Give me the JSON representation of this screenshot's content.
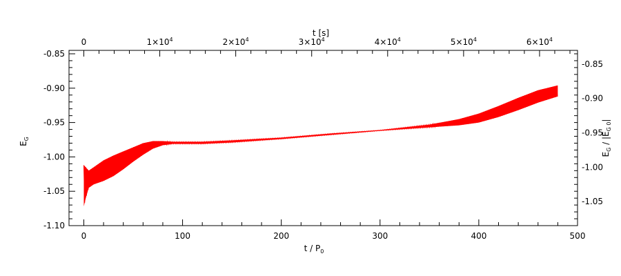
{
  "chart_data": {
    "type": "line",
    "xlabel": "t / P",
    "xlabel_sub": "0",
    "x2label": "t [s]",
    "ylabel": "E",
    "ylabel_sub": "G",
    "y2label_pre": "E",
    "y2label_pre_sub": "G",
    "y2label_mid": " / |E",
    "y2label_mid_sub": "G 0",
    "y2label_post": "|",
    "xlim": [
      -15,
      500
    ],
    "ylim": [
      -1.1,
      -0.845
    ],
    "x2lim": [
      -1950,
      65000
    ],
    "y2lim": [
      -1.085,
      -0.83
    ],
    "x_ticks": [
      "0",
      "100",
      "200",
      "300",
      "400",
      "500"
    ],
    "y_ticks": [
      "-0.85",
      "-0.90",
      "-0.95",
      "-1.00",
      "-1.05",
      "-1.10"
    ],
    "x2_ticks": [
      {
        "value": 0,
        "mantissa": "0",
        "exponent": ""
      },
      {
        "value": 10000,
        "mantissa": "1×10",
        "exponent": "4"
      },
      {
        "value": 20000,
        "mantissa": "2×10",
        "exponent": "4"
      },
      {
        "value": 30000,
        "mantissa": "3×10",
        "exponent": "4"
      },
      {
        "value": 40000,
        "mantissa": "4×10",
        "exponent": "4"
      },
      {
        "value": 50000,
        "mantissa": "5×10",
        "exponent": "4"
      },
      {
        "value": 60000,
        "mantissa": "6×10",
        "exponent": "4"
      }
    ],
    "y2_ticks": [
      "-0.85",
      "-0.90",
      "-0.95",
      "-1.00",
      "-1.05"
    ],
    "series": [
      {
        "color": "#ff0000",
        "upper": {
          "x": [
            0,
            2,
            5,
            10,
            20,
            30,
            40,
            50,
            60,
            70,
            80,
            90,
            100,
            120,
            150,
            200,
            250,
            300,
            350,
            380,
            400,
            420,
            440,
            460,
            480
          ],
          "y": [
            -1.012,
            -1.015,
            -1.02,
            -1.015,
            -1.005,
            -0.998,
            -0.992,
            -0.986,
            -0.98,
            -0.977,
            -0.977,
            -0.978,
            -0.978,
            -0.978,
            -0.976,
            -0.972,
            -0.966,
            -0.961,
            -0.953,
            -0.945,
            -0.937,
            -0.926,
            -0.914,
            -0.903,
            -0.896
          ]
        },
        "lower": {
          "x": [
            0,
            2,
            5,
            10,
            20,
            30,
            40,
            50,
            60,
            70,
            80,
            90,
            100,
            120,
            150,
            200,
            250,
            300,
            350,
            380,
            400,
            420,
            440,
            460,
            480
          ],
          "y": [
            -1.072,
            -1.06,
            -1.045,
            -1.04,
            -1.035,
            -1.028,
            -1.018,
            -1.007,
            -0.997,
            -0.988,
            -0.983,
            -0.981,
            -0.981,
            -0.981,
            -0.979,
            -0.974,
            -0.968,
            -0.962,
            -0.957,
            -0.954,
            -0.95,
            -0.942,
            -0.932,
            -0.921,
            -0.912
          ]
        }
      }
    ],
    "grid": false
  }
}
